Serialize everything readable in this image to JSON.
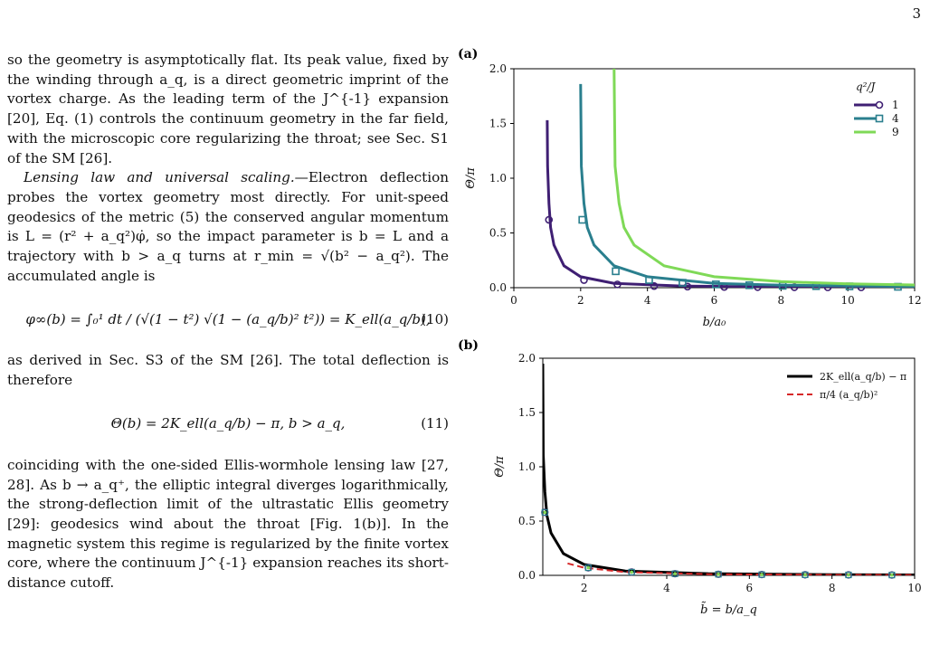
{
  "page": {
    "number": "3"
  },
  "text": {
    "p1": "so the geometry is asymptotically flat. Its peak value, fixed by the winding through a_q, is a direct geometric imprint of the vortex charge. As the leading term of the J^{-1} expansion [20], Eq. (1) controls the continuum geometry in the far field, with the microscopic core regularizing the throat; see Sec. S1 of the SM [26].",
    "p2_head": "Lensing law and universal scaling.",
    "p2": "—Electron deflection probes the vortex geometry most directly. For unit-speed geodesics of the metric (5) the conserved angular momentum is L = (r² + a_q²)φ̇, so the impact parameter is b = L and a trajectory with b > a_q turns at r_min = √(b² − a_q²). The accumulated angle is",
    "eq10": "φ∞(b) = ∫₀¹ dt / (√(1 − t²) √(1 − (a_q/b)² t²)) = K_ell(a_q/b),",
    "eq10_num": "(10)",
    "p3": "as derived in Sec. S3 of the SM [26]. The total deflection is therefore",
    "eq11": "Θ(b) = 2K_ell(a_q/b) − π,     b > a_q,",
    "eq11_num": "(11)",
    "p4": "coinciding with the one-sided Ellis-wormhole lensing law [27, 28]. As b → a_q⁺, the elliptic integral diverges logarithmically, the strong-deflection limit of the ultrastatic Ellis geometry [29]: geodesics wind about the throat [Fig. 1(b)]. In the magnetic system this regime is regularized by the finite vortex core, where the continuum J^{-1} expansion reaches its short-distance cutoff."
  },
  "figure": {
    "panel_a_label": "(a)",
    "panel_b_label": "(b)",
    "colors": {
      "purple": "#3f1f73",
      "teal": "#2a7f8e",
      "green": "#7fd957",
      "black": "#000000",
      "red": "#d62728"
    }
  },
  "chart_data": [
    {
      "type": "line",
      "panel": "(a)",
      "xlabel": "b/a₀",
      "ylabel": "Θ/π",
      "xlim": [
        0,
        12
      ],
      "ylim": [
        0,
        2.0
      ],
      "xticks": [
        0,
        2,
        4,
        6,
        8,
        10,
        12
      ],
      "yticks": [
        0.0,
        0.5,
        1.0,
        1.5,
        2.0
      ],
      "legend": {
        "title": "q²/J",
        "placement": "top-right"
      },
      "series": [
        {
          "name": "1",
          "a_q": 1,
          "marker": "circle",
          "color": "#3f1f73",
          "curve": [
            [
              1.0,
              1.53
            ],
            [
              1.01,
              1.11
            ],
            [
              1.05,
              0.77
            ],
            [
              1.1,
              0.55
            ],
            [
              1.2,
              0.39
            ],
            [
              1.5,
              0.2
            ],
            [
              2,
              0.1
            ],
            [
              3,
              0.04
            ],
            [
              5,
              0.016
            ],
            [
              8,
              0.006
            ],
            [
              12,
              0.003
            ]
          ],
          "markers": [
            [
              1.05,
              0.62
            ],
            [
              2.1,
              0.07
            ],
            [
              3.1,
              0.03
            ],
            [
              4.2,
              0.015
            ],
            [
              5.2,
              0.01
            ],
            [
              6.3,
              0.007
            ],
            [
              7.3,
              0.005
            ],
            [
              8.4,
              0.004
            ],
            [
              9.4,
              0.003
            ],
            [
              10.4,
              0.003
            ]
          ]
        },
        {
          "name": "4",
          "a_q": 2,
          "marker": "square",
          "color": "#2a7f8e",
          "curve": [
            [
              2.0,
              1.86
            ],
            [
              2.02,
              1.11
            ],
            [
              2.1,
              0.77
            ],
            [
              2.2,
              0.55
            ],
            [
              2.4,
              0.39
            ],
            [
              3,
              0.2
            ],
            [
              4,
              0.1
            ],
            [
              6,
              0.04
            ],
            [
              8,
              0.023
            ],
            [
              12,
              0.011
            ]
          ],
          "markers": [
            [
              2.05,
              0.62
            ],
            [
              3.05,
              0.15
            ],
            [
              4.05,
              0.07
            ],
            [
              5.05,
              0.045
            ],
            [
              6.05,
              0.03
            ],
            [
              7.05,
              0.022
            ],
            [
              8.05,
              0.017
            ],
            [
              9.05,
              0.014
            ],
            [
              10.05,
              0.012
            ],
            [
              11.5,
              0.008
            ]
          ]
        },
        {
          "name": "9",
          "a_q": 3,
          "marker": "",
          "color": "#7fd957",
          "curve": [
            [
              3.0,
              2.0
            ],
            [
              3.03,
              1.11
            ],
            [
              3.15,
              0.77
            ],
            [
              3.3,
              0.55
            ],
            [
              3.6,
              0.39
            ],
            [
              4.5,
              0.2
            ],
            [
              6,
              0.1
            ],
            [
              8,
              0.055
            ],
            [
              10,
              0.035
            ],
            [
              12,
              0.025
            ]
          ]
        }
      ]
    },
    {
      "type": "line",
      "panel": "(b)",
      "xlabel": "b̃ = b/a_q",
      "ylabel": "Θ/π",
      "xlim": [
        1,
        10
      ],
      "ylim": [
        0,
        2.0
      ],
      "xticks": [
        2,
        4,
        6,
        8,
        10
      ],
      "yticks": [
        0.0,
        0.5,
        1.0,
        1.5,
        2.0
      ],
      "legend": {
        "placement": "top-right"
      },
      "series": [
        {
          "name": "2K_ell(a_q/b) − π",
          "color": "#000000",
          "style": "solid",
          "curve": [
            [
              1.0,
              1.95
            ],
            [
              1.01,
              1.11
            ],
            [
              1.05,
              0.77
            ],
            [
              1.1,
              0.55
            ],
            [
              1.2,
              0.39
            ],
            [
              1.5,
              0.2
            ],
            [
              2,
              0.1
            ],
            [
              3,
              0.04
            ],
            [
              5,
              0.016
            ],
            [
              8,
              0.006
            ],
            [
              10,
              0.004
            ]
          ]
        },
        {
          "name": "π/4 (a_q/b)²",
          "color": "#d62728",
          "style": "dashed",
          "curve": [
            [
              1.6,
              0.11
            ],
            [
              2,
              0.07
            ],
            [
              3,
              0.03
            ],
            [
              5,
              0.011
            ],
            [
              8,
              0.004
            ],
            [
              10,
              0.003
            ]
          ]
        },
        {
          "name": "",
          "marker": "collapse",
          "color": "#7fd957",
          "markers": [
            [
              1.05,
              0.58
            ],
            [
              2.1,
              0.07
            ],
            [
              3.15,
              0.03
            ],
            [
              4.2,
              0.015
            ],
            [
              5.25,
              0.01
            ],
            [
              6.3,
              0.007
            ],
            [
              7.35,
              0.005
            ],
            [
              8.4,
              0.004
            ],
            [
              9.45,
              0.003
            ]
          ]
        }
      ]
    }
  ]
}
